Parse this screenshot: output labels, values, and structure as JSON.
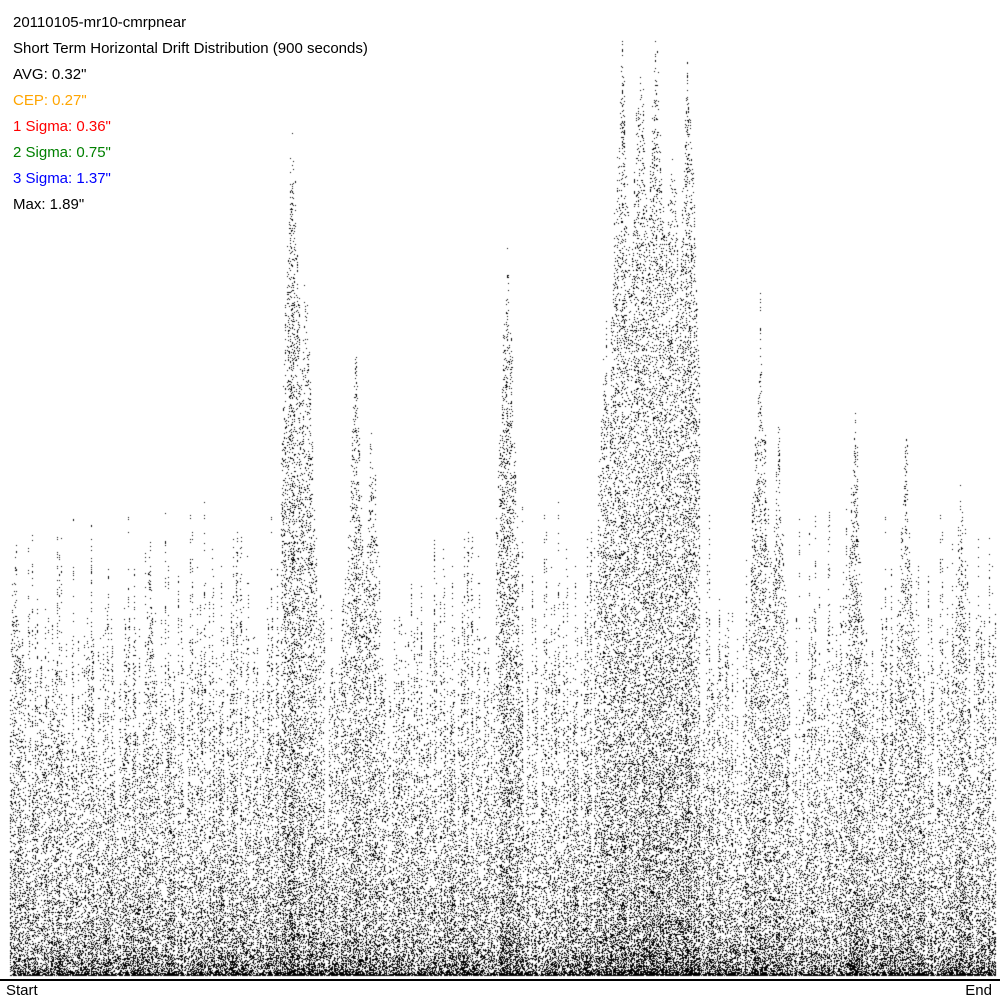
{
  "chart_data": {
    "type": "scatter",
    "title": "20110105-mr10-cmrpnear",
    "subtitle": "Short Term Horizontal Drift Distribution (900 seconds)",
    "stats": [
      {
        "label": "AVG: 0.32\"",
        "color": "#000000"
      },
      {
        "label": "CEP: 0.27\"",
        "color": "#FFA500"
      },
      {
        "label": "1 Sigma: 0.36\"",
        "color": "#FF0000"
      },
      {
        "label": "2 Sigma: 0.75\"",
        "color": "#008000"
      },
      {
        "label": "3 Sigma: 1.37\"",
        "color": "#0000FF"
      },
      {
        "label": "Max: 1.89\"",
        "color": "#000000"
      }
    ],
    "x_tick_labels": {
      "start": "Start",
      "end": "End"
    },
    "ylim": [
      0,
      1.89
    ],
    "grid": false,
    "point_color": "#000000"
  }
}
